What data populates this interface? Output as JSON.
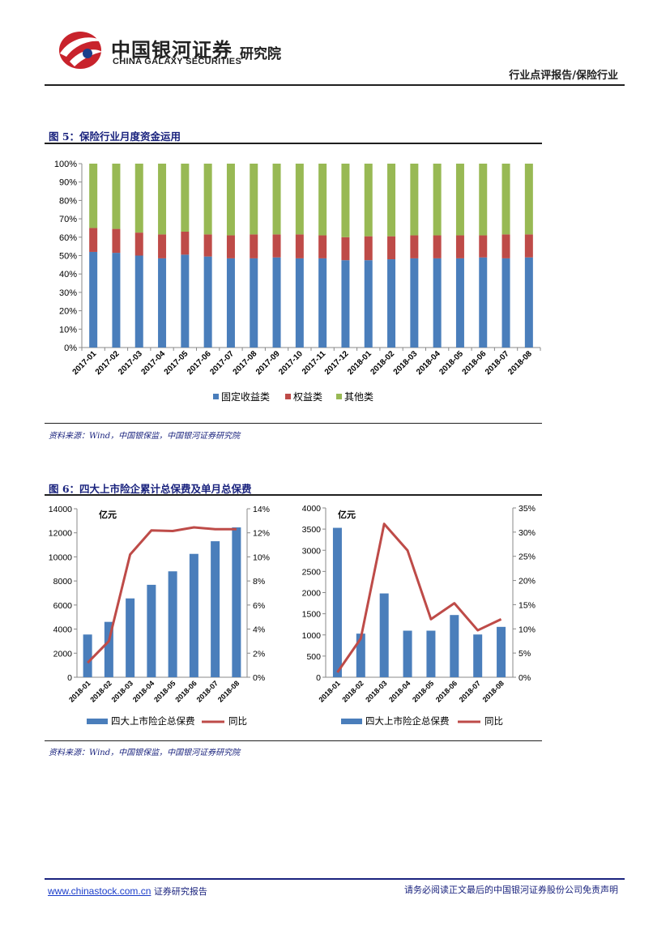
{
  "header": {
    "company_cn": "中国银河证券",
    "company_en": "CHINA GALAXY SECURITIES",
    "institute": "研究院",
    "report_type": "行业点评报告/保险行业"
  },
  "figure5": {
    "title": "图 5：保险行业月度资金运用",
    "source": "资料来源：Wind，中国银保监，中国银河证券研究院"
  },
  "figure6": {
    "title": "图 6：四大上市险企累计总保费及单月总保费",
    "source": "资料来源：Wind，中国银保监，中国银河证券研究院",
    "left_unit": "亿元",
    "right_unit": "亿元"
  },
  "footer": {
    "url": "www.chinastock.com.cn",
    "url_suffix": " 证券研究报告",
    "disclaimer": "请务必阅读正文最后的中国银河证券股份公司免责声明"
  },
  "colors": {
    "fixed": "#4a7ebb",
    "equity": "#be4b48",
    "other": "#98b954",
    "line": "#be4b48",
    "bar": "#4a7ebb"
  },
  "chart_data": [
    {
      "type": "bar",
      "stacked": true,
      "title": "图 5：保险行业月度资金运用",
      "categories": [
        "2017-01",
        "2017-02",
        "2017-03",
        "2017-04",
        "2017-05",
        "2017-06",
        "2017-07",
        "2017-08",
        "2017-09",
        "2017-10",
        "2017-11",
        "2017-12",
        "2018-01",
        "2018-02",
        "2018-03",
        "2018-04",
        "2018-05",
        "2018-06",
        "2018-07",
        "2018-08"
      ],
      "series": [
        {
          "name": "固定收益类",
          "values": [
            52,
            51.5,
            50,
            48.5,
            50.5,
            49.5,
            48.5,
            48.5,
            49,
            48.5,
            48.5,
            47.5,
            47.5,
            48,
            48.5,
            48.5,
            48.5,
            49,
            48.5,
            49
          ]
        },
        {
          "name": "权益类",
          "values": [
            13,
            13,
            12.5,
            13,
            12.5,
            12,
            12.5,
            13,
            12.5,
            13,
            12.5,
            12.5,
            13,
            12.5,
            12.5,
            12.5,
            12.5,
            12,
            13,
            12.5
          ]
        },
        {
          "name": "其他类",
          "values": [
            35,
            35.5,
            37.5,
            38.5,
            37,
            38.5,
            39,
            38.5,
            38.5,
            38.5,
            39,
            40,
            39.5,
            39.5,
            39,
            39,
            39,
            39,
            38.5,
            38.5
          ]
        }
      ],
      "yticks": [
        "0%",
        "10%",
        "20%",
        "30%",
        "40%",
        "50%",
        "60%",
        "70%",
        "80%",
        "90%",
        "100%"
      ],
      "ylim": [
        0,
        100
      ]
    },
    {
      "type": "bar+line",
      "categories": [
        "2018-01",
        "2018-02",
        "2018-03",
        "2018-04",
        "2018-05",
        "2018-06",
        "2018-07",
        "2018-08"
      ],
      "series": [
        {
          "name": "四大上市险企总保费",
          "axis": "left",
          "values": [
            3550,
            4600,
            6550,
            7680,
            8800,
            10250,
            11300,
            12450
          ]
        },
        {
          "name": "同比",
          "axis": "right",
          "values": [
            1.2,
            3.0,
            10.2,
            12.2,
            12.15,
            12.45,
            12.3,
            12.3
          ]
        }
      ],
      "ylim_left": [
        0,
        14000
      ],
      "yticks_left": [
        "0",
        "2000",
        "4000",
        "6000",
        "8000",
        "10000",
        "12000",
        "14000"
      ],
      "ylim_right": [
        0,
        14
      ],
      "yticks_right": [
        "0%",
        "2%",
        "4%",
        "6%",
        "8%",
        "10%",
        "12%",
        "14%"
      ]
    },
    {
      "type": "bar+line",
      "categories": [
        "2018-01",
        "2018-02",
        "2018-03",
        "2018-04",
        "2018-05",
        "2018-06",
        "2018-07",
        "2018-08"
      ],
      "series": [
        {
          "name": "四大上市险企总保费",
          "axis": "left",
          "values": [
            3530,
            1030,
            1980,
            1100,
            1100,
            1470,
            1010,
            1190
          ]
        },
        {
          "name": "同比",
          "axis": "right",
          "values": [
            1.0,
            8.0,
            31.7,
            26.2,
            12.0,
            15.3,
            9.7,
            12.0
          ]
        }
      ],
      "ylim_left": [
        0,
        4000
      ],
      "yticks_left": [
        "0",
        "500",
        "1000",
        "1500",
        "2000",
        "2500",
        "3000",
        "3500",
        "4000"
      ],
      "ylim_right": [
        0,
        35
      ],
      "yticks_right": [
        "0%",
        "5%",
        "10%",
        "15%",
        "20%",
        "25%",
        "30%",
        "35%"
      ]
    }
  ]
}
